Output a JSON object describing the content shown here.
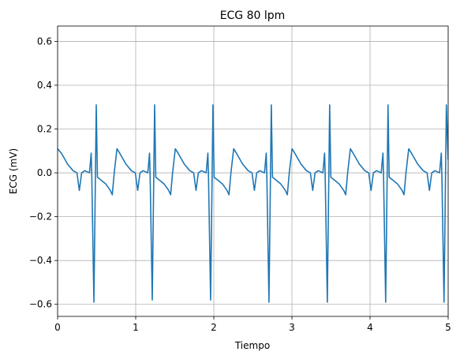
{
  "chart_data": {
    "type": "line",
    "title": "ECG 80 lpm",
    "xlabel": "Tiempo",
    "ylabel": "ECG (mV)",
    "color": "#1f77b4",
    "grid": true,
    "xlim": [
      0,
      5
    ],
    "ylim": [
      -0.655,
      0.67
    ],
    "xticks": [
      0,
      1,
      2,
      3,
      4,
      5
    ],
    "yticks": [
      {
        "value": -0.6,
        "label": "−0.6"
      },
      {
        "value": -0.4,
        "label": "−0.4"
      },
      {
        "value": -0.2,
        "label": "−0.2"
      },
      {
        "value": 0,
        "label": "0.0"
      },
      {
        "value": 0.2,
        "label": "0.2"
      },
      {
        "value": 0.4,
        "label": "0.4"
      },
      {
        "value": 0.6,
        "label": "0.6"
      }
    ],
    "x": [
      0,
      0.048,
      0.128,
      0.198,
      0.248,
      0.278,
      0.308,
      0.348,
      0.408,
      0.43,
      0.438,
      0.465,
      0.495,
      0.51,
      0.545,
      0.615,
      0.675,
      0.7,
      0.725,
      0.76,
      0.795,
      0.875,
      0.945,
      0.995,
      1.025,
      1.055,
      1.095,
      1.155,
      1.177,
      1.185,
      1.212,
      1.242,
      1.257,
      1.292,
      1.362,
      1.422,
      1.447,
      1.472,
      1.507,
      1.542,
      1.622,
      1.692,
      1.742,
      1.772,
      1.802,
      1.842,
      1.902,
      1.924,
      1.932,
      1.959,
      1.989,
      2.004,
      2.039,
      2.109,
      2.169,
      2.194,
      2.219,
      2.254,
      2.289,
      2.369,
      2.439,
      2.489,
      2.519,
      2.549,
      2.589,
      2.649,
      2.671,
      2.679,
      2.706,
      2.736,
      2.751,
      2.786,
      2.856,
      2.916,
      2.941,
      2.966,
      3.001,
      3.036,
      3.116,
      3.186,
      3.236,
      3.266,
      3.296,
      3.336,
      3.396,
      3.418,
      3.426,
      3.453,
      3.483,
      3.498,
      3.533,
      3.603,
      3.663,
      3.688,
      3.713,
      3.748,
      3.783,
      3.863,
      3.933,
      3.983,
      4.013,
      4.043,
      4.083,
      4.143,
      4.165,
      4.173,
      4.2,
      4.23,
      4.245,
      4.28,
      4.35,
      4.41,
      4.435,
      4.46,
      4.495,
      4.53,
      4.61,
      4.68,
      4.73,
      4.76,
      4.79,
      4.83,
      4.89,
      4.912,
      4.92,
      4.947,
      4.977,
      5.0
    ],
    "values": [
      0.11,
      0.09,
      0.04,
      0.01,
      0.0,
      -0.08,
      0.0,
      0.01,
      0.0,
      0.09,
      -0.02,
      -0.59,
      0.31,
      -0.02,
      -0.03,
      -0.05,
      -0.08,
      -0.1,
      0.0,
      0.11,
      0.09,
      0.04,
      0.01,
      0.0,
      -0.08,
      0.0,
      0.01,
      0.0,
      0.09,
      -0.02,
      -0.58,
      0.31,
      -0.02,
      -0.03,
      -0.05,
      -0.08,
      -0.1,
      0.0,
      0.11,
      0.09,
      0.04,
      0.01,
      0.0,
      -0.08,
      0.0,
      0.01,
      0.0,
      0.09,
      -0.02,
      -0.58,
      0.31,
      -0.02,
      -0.03,
      -0.05,
      -0.08,
      -0.1,
      0.0,
      0.11,
      0.09,
      0.04,
      0.01,
      0.0,
      -0.08,
      0.0,
      0.01,
      0.0,
      0.09,
      -0.02,
      -0.59,
      0.31,
      -0.02,
      -0.03,
      -0.05,
      -0.08,
      -0.1,
      0.0,
      0.11,
      0.09,
      0.04,
      0.01,
      0.0,
      -0.08,
      0.0,
      0.01,
      0.0,
      0.09,
      -0.02,
      -0.59,
      0.31,
      -0.02,
      -0.03,
      -0.05,
      -0.08,
      -0.1,
      0.0,
      0.11,
      0.09,
      0.04,
      0.01,
      0.0,
      -0.08,
      0.0,
      0.01,
      0.0,
      0.09,
      -0.02,
      -0.59,
      0.31,
      -0.02,
      -0.03,
      -0.05,
      -0.08,
      -0.1,
      0.0,
      0.11,
      0.09,
      0.04,
      0.01,
      0.0,
      -0.08,
      0.0,
      0.01,
      0.0,
      0.09,
      -0.02,
      -0.59,
      0.31,
      0.06
    ]
  }
}
